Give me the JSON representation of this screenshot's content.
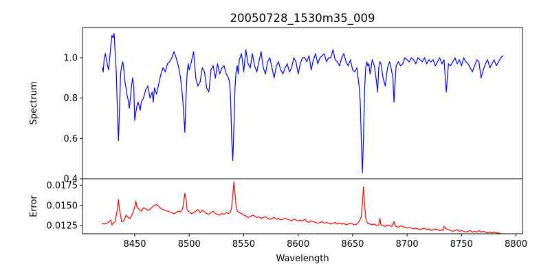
{
  "chart_data": [
    {
      "type": "line",
      "title": "20050728_1530m35_009",
      "xlabel": "",
      "ylabel": "Spectrum",
      "xlim": [
        8402,
        8806
      ],
      "ylim": [
        0.4,
        1.15
      ],
      "yticks": [
        0.4,
        0.6,
        0.8,
        1.0
      ],
      "ytick_labels": [
        "0.4",
        "0.6",
        "0.8",
        "1.0"
      ],
      "grid": false,
      "series": [
        {
          "color": "#0000ff",
          "x": [
            8420,
            8421,
            8422,
            8423,
            8424,
            8425,
            8426,
            8427,
            8428,
            8429,
            8430,
            8431,
            8432,
            8433,
            8434,
            8435,
            8436,
            8437,
            8438,
            8439,
            8440,
            8441,
            8442,
            8443,
            8444,
            8445,
            8446,
            8447,
            8448,
            8449,
            8450,
            8451,
            8452,
            8453,
            8454,
            8455,
            8456,
            8458,
            8460,
            8462,
            8464,
            8466,
            8467,
            8468,
            8470,
            8472,
            8474,
            8476,
            8478,
            8480,
            8482,
            8484,
            8486,
            8488,
            8490,
            8492,
            8494,
            8495,
            8496,
            8497,
            8498,
            8499,
            8500,
            8502,
            8504,
            8506,
            8508,
            8510,
            8512,
            8514,
            8516,
            8518,
            8520,
            8522,
            8524,
            8526,
            8528,
            8530,
            8532,
            8534,
            8536,
            8537,
            8538,
            8539,
            8540,
            8541,
            8542,
            8543,
            8544,
            8545,
            8546,
            8548,
            8550,
            8552,
            8554,
            8556,
            8558,
            8560,
            8562,
            8564,
            8566,
            8568,
            8570,
            8572,
            8574,
            8576,
            8578,
            8580,
            8582,
            8584,
            8586,
            8588,
            8590,
            8592,
            8594,
            8596,
            8598,
            8600,
            8602,
            8604,
            8606,
            8608,
            8610,
            8612,
            8614,
            8616,
            8618,
            8620,
            8622,
            8624,
            8626,
            8628,
            8630,
            8632,
            8634,
            8636,
            8638,
            8640,
            8642,
            8644,
            8646,
            8648,
            8650,
            8652,
            8654,
            8655,
            8656,
            8657,
            8658,
            8659,
            8660,
            8661,
            8662,
            8663,
            8664,
            8665,
            8666,
            8667,
            8668,
            8670,
            8672,
            8673,
            8674,
            8675,
            8676,
            8678,
            8680,
            8682,
            8684,
            8686,
            8687,
            8688,
            8689,
            8690,
            8692,
            8694,
            8696,
            8698,
            8700,
            8702,
            8704,
            8706,
            8708,
            8710,
            8712,
            8714,
            8716,
            8718,
            8720,
            8722,
            8724,
            8726,
            8728,
            8730,
            8732,
            8734,
            8736,
            8738,
            8740,
            8742,
            8744,
            8746,
            8748,
            8750,
            8752,
            8754,
            8756,
            8758,
            8760,
            8762,
            8764,
            8766,
            8768,
            8770,
            8772,
            8774,
            8776,
            8778,
            8780,
            8782,
            8784,
            8786,
            8788
          ],
          "y": [
            0.95,
            0.93,
            1.0,
            1.02,
            0.99,
            0.96,
            0.94,
            1.0,
            1.06,
            1.11,
            1.1,
            1.12,
            1.03,
            0.93,
            0.75,
            0.59,
            0.75,
            0.92,
            0.96,
            0.98,
            0.94,
            0.88,
            0.85,
            0.81,
            0.79,
            0.75,
            0.8,
            0.86,
            0.9,
            0.86,
            0.69,
            0.73,
            0.76,
            0.78,
            0.76,
            0.74,
            0.78,
            0.8,
            0.84,
            0.86,
            0.8,
            0.83,
            0.78,
            0.85,
            0.82,
            0.87,
            0.92,
            0.95,
            0.93,
            0.97,
            0.98,
            1.0,
            1.03,
            1.0,
            0.96,
            0.9,
            0.8,
            0.72,
            0.63,
            0.8,
            0.92,
            0.97,
            0.94,
            0.98,
            1.03,
            0.9,
            0.86,
            0.88,
            0.95,
            0.93,
            0.85,
            0.83,
            0.94,
            0.96,
            0.9,
            0.97,
            0.92,
            0.95,
            0.96,
            0.92,
            0.9,
            0.88,
            0.8,
            0.6,
            0.49,
            0.65,
            0.85,
            0.93,
            0.96,
            0.92,
            0.99,
            1.02,
            0.93,
            1.04,
            0.97,
            0.95,
            1.02,
            0.96,
            0.93,
            0.98,
            1.03,
            0.95,
            0.92,
            0.98,
            1.0,
            0.95,
            0.9,
            0.96,
            0.98,
            0.94,
            0.92,
            0.95,
            0.97,
            0.93,
            0.95,
            1.0,
            0.98,
            0.92,
            0.97,
            1.0,
            1.0,
            0.98,
            1.01,
            0.94,
            0.99,
            1.02,
            0.97,
            1.0,
            1.01,
            1.02,
            0.98,
            1.0,
            1.0,
            1.04,
            0.99,
            0.98,
            0.96,
            1.0,
            1.02,
            0.98,
            0.96,
            0.99,
            0.94,
            0.93,
            0.95,
            0.9,
            0.86,
            0.78,
            0.6,
            0.43,
            0.6,
            0.84,
            0.95,
            0.98,
            0.96,
            0.97,
            0.92,
            0.95,
            0.99,
            0.96,
            0.88,
            0.83,
            0.95,
            0.98,
            0.97,
            0.9,
            0.86,
            0.95,
            0.98,
            0.93,
            0.9,
            0.78,
            0.88,
            0.96,
            0.98,
            0.96,
            0.97,
            1.0,
            0.99,
            0.98,
            1.0,
            0.99,
            0.97,
            1.0,
            0.99,
            0.98,
            1.0,
            0.97,
            0.99,
            0.98,
            0.99,
            0.96,
            0.98,
            1.0,
            0.97,
            0.99,
            0.83,
            0.97,
            0.96,
            0.98,
            1.0,
            0.97,
            0.99,
            0.96,
            1.0,
            0.98,
            0.97,
            0.95,
            0.93,
            0.96,
            0.99,
            0.98,
            0.9,
            0.94,
            0.97,
            0.99,
            0.95,
            0.97,
            0.99,
            0.96,
            0.98,
            1.0,
            1.01
          ]
        }
      ]
    },
    {
      "type": "line",
      "title": "",
      "xlabel": "Wavelength",
      "ylabel": "Error",
      "xlim": [
        8402,
        8806
      ],
      "ylim": [
        0.0115,
        0.0183
      ],
      "xticks": [
        8450,
        8500,
        8550,
        8600,
        8650,
        8700,
        8750,
        8800
      ],
      "xtick_labels": [
        "8450",
        "8500",
        "8550",
        "8600",
        "8650",
        "8700",
        "8750",
        "8800"
      ],
      "yticks": [
        0.0125,
        0.015,
        0.0175
      ],
      "ytick_labels": [
        "0.0125",
        "0.0150",
        "0.0175"
      ],
      "grid": false,
      "series": [
        {
          "color": "#ff0000",
          "x": [
            8420,
            8422,
            8424,
            8426,
            8428,
            8429,
            8430,
            8432,
            8434,
            8435,
            8436,
            8438,
            8440,
            8442,
            8444,
            8446,
            8448,
            8450,
            8451,
            8452,
            8454,
            8456,
            8458,
            8460,
            8462,
            8464,
            8466,
            8468,
            8470,
            8472,
            8474,
            8476,
            8478,
            8480,
            8482,
            8484,
            8486,
            8488,
            8490,
            8492,
            8494,
            8495,
            8496,
            8497,
            8498,
            8499,
            8500,
            8502,
            8504,
            8506,
            8508,
            8510,
            8512,
            8514,
            8516,
            8518,
            8520,
            8522,
            8524,
            8526,
            8528,
            8530,
            8532,
            8534,
            8536,
            8538,
            8539,
            8540,
            8541,
            8542,
            8543,
            8544,
            8546,
            8548,
            8550,
            8552,
            8554,
            8556,
            8558,
            8560,
            8562,
            8564,
            8566,
            8568,
            8570,
            8572,
            8574,
            8576,
            8578,
            8580,
            8582,
            8584,
            8586,
            8588,
            8590,
            8592,
            8594,
            8596,
            8598,
            8600,
            8602,
            8604,
            8606,
            8608,
            8610,
            8612,
            8614,
            8616,
            8618,
            8620,
            8622,
            8624,
            8626,
            8628,
            8630,
            8632,
            8634,
            8636,
            8638,
            8640,
            8642,
            8644,
            8646,
            8648,
            8650,
            8652,
            8654,
            8656,
            8658,
            8659,
            8660,
            8661,
            8662,
            8663,
            8664,
            8666,
            8668,
            8670,
            8672,
            8674,
            8675,
            8676,
            8678,
            8680,
            8682,
            8684,
            8686,
            8687,
            8688,
            8689,
            8690,
            8692,
            8694,
            8696,
            8698,
            8700,
            8702,
            8704,
            8706,
            8708,
            8710,
            8712,
            8714,
            8716,
            8718,
            8720,
            8722,
            8724,
            8726,
            8728,
            8730,
            8732,
            8733,
            8734,
            8736,
            8738,
            8740,
            8742,
            8744,
            8746,
            8748,
            8750,
            8752,
            8754,
            8756,
            8758,
            8760,
            8762,
            8764,
            8766,
            8768,
            8770,
            8772,
            8774,
            8776,
            8778,
            8780,
            8782,
            8784,
            8786
          ],
          "y": [
            0.0128,
            0.0127,
            0.0128,
            0.0129,
            0.0132,
            0.0126,
            0.0128,
            0.013,
            0.0145,
            0.0157,
            0.0145,
            0.013,
            0.0131,
            0.0138,
            0.0135,
            0.0134,
            0.014,
            0.0148,
            0.0155,
            0.0148,
            0.0145,
            0.0143,
            0.0147,
            0.0146,
            0.0144,
            0.0145,
            0.0148,
            0.015,
            0.0151,
            0.0149,
            0.0146,
            0.0145,
            0.0144,
            0.0143,
            0.0142,
            0.0141,
            0.014,
            0.0141,
            0.0143,
            0.0142,
            0.0146,
            0.0155,
            0.0165,
            0.0158,
            0.0145,
            0.0143,
            0.0142,
            0.014,
            0.0141,
            0.0143,
            0.0145,
            0.0141,
            0.0144,
            0.0142,
            0.014,
            0.0139,
            0.0141,
            0.0143,
            0.014,
            0.0139,
            0.0138,
            0.014,
            0.0139,
            0.0141,
            0.014,
            0.0142,
            0.0148,
            0.0162,
            0.0179,
            0.0165,
            0.015,
            0.0143,
            0.0141,
            0.014,
            0.0138,
            0.0137,
            0.0135,
            0.0136,
            0.0138,
            0.0137,
            0.0135,
            0.0136,
            0.0134,
            0.0135,
            0.0136,
            0.0134,
            0.0133,
            0.0134,
            0.0135,
            0.0133,
            0.0134,
            0.0132,
            0.0133,
            0.0134,
            0.0133,
            0.0132,
            0.0131,
            0.0133,
            0.0132,
            0.0131,
            0.0132,
            0.0131,
            0.0133,
            0.013,
            0.0129,
            0.0131,
            0.013,
            0.0129,
            0.0128,
            0.0129,
            0.013,
            0.0128,
            0.0129,
            0.0128,
            0.0127,
            0.0128,
            0.0129,
            0.0127,
            0.0128,
            0.0127,
            0.0128,
            0.0126,
            0.0127,
            0.0128,
            0.0127,
            0.0126,
            0.0127,
            0.013,
            0.0136,
            0.0152,
            0.0173,
            0.0152,
            0.0135,
            0.013,
            0.0128,
            0.0127,
            0.0126,
            0.0127,
            0.0125,
            0.0126,
            0.0134,
            0.0126,
            0.0125,
            0.0124,
            0.0126,
            0.0125,
            0.0124,
            0.0127,
            0.013,
            0.0126,
            0.0124,
            0.0123,
            0.0125,
            0.0124,
            0.0123,
            0.0122,
            0.0123,
            0.0122,
            0.0121,
            0.0122,
            0.0121,
            0.012,
            0.0121,
            0.0122,
            0.012,
            0.0121,
            0.0119,
            0.012,
            0.0121,
            0.012,
            0.0119,
            0.012,
            0.0119,
            0.0124,
            0.0121,
            0.012,
            0.0119,
            0.0118,
            0.0119,
            0.012,
            0.0118,
            0.0119,
            0.0118,
            0.0117,
            0.0118,
            0.0119,
            0.0117,
            0.0118,
            0.0117,
            0.0119,
            0.0117,
            0.0118,
            0.0117,
            0.0116,
            0.0117,
            0.0116,
            0.0117,
            0.0116,
            0.0116,
            0.0115
          ]
        }
      ]
    }
  ]
}
